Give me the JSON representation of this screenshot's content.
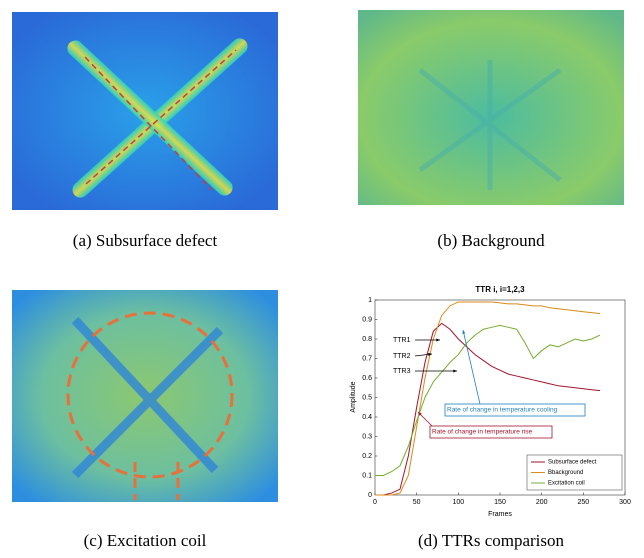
{
  "captions": [
    "(a) Subsurface defect",
    "(b) Background",
    "(c) Excitation coil",
    "(d) TTRs comparison"
  ],
  "chart_data": {
    "type": "line",
    "title": "TTR i, i=1,2,3",
    "x_label": "Frames",
    "y_label": "Amplitude",
    "x": [
      0,
      10,
      20,
      30,
      40,
      50,
      60,
      70,
      80,
      90,
      100,
      110,
      120,
      130,
      140,
      150,
      160,
      170,
      180,
      190,
      200,
      210,
      220,
      230,
      240,
      250,
      260,
      270
    ],
    "series": [
      {
        "name": "Subsurface defect",
        "color": "#a2142f",
        "values": [
          0,
          0,
          0.01,
          0.03,
          0.2,
          0.45,
          0.68,
          0.84,
          0.88,
          0.85,
          0.8,
          0.76,
          0.72,
          0.69,
          0.66,
          0.64,
          0.62,
          0.61,
          0.6,
          0.59,
          0.58,
          0.57,
          0.56,
          0.555,
          0.55,
          0.545,
          0.54,
          0.535
        ]
      },
      {
        "name": "Bbackground",
        "color": "#d98a1a",
        "values": [
          0,
          0,
          0,
          0.01,
          0.1,
          0.35,
          0.6,
          0.8,
          0.92,
          0.97,
          0.99,
          0.99,
          0.99,
          0.99,
          0.99,
          0.985,
          0.98,
          0.98,
          0.975,
          0.97,
          0.97,
          0.96,
          0.955,
          0.95,
          0.945,
          0.94,
          0.935,
          0.93
        ]
      },
      {
        "name": "Excitation coil",
        "color": "#77ac30",
        "values": [
          0.1,
          0.1,
          0.12,
          0.15,
          0.25,
          0.38,
          0.5,
          0.58,
          0.63,
          0.68,
          0.72,
          0.78,
          0.82,
          0.85,
          0.86,
          0.87,
          0.86,
          0.85,
          0.78,
          0.7,
          0.74,
          0.77,
          0.76,
          0.78,
          0.8,
          0.79,
          0.8,
          0.82
        ]
      }
    ],
    "xlim": [
      0,
      300
    ],
    "xticks": [
      0,
      50,
      100,
      150,
      200,
      250,
      300
    ],
    "ylim": [
      0,
      1
    ],
    "yticks": [
      0,
      0.1,
      0.2,
      0.3,
      0.4,
      0.5,
      0.6,
      0.7,
      0.8,
      0.9,
      1
    ],
    "legend": "lower right",
    "annotations": [
      "TTR1",
      "TTR2",
      "TTR3",
      "Rate of change in temperature cooling",
      "Rate of change in temperature rise"
    ]
  }
}
